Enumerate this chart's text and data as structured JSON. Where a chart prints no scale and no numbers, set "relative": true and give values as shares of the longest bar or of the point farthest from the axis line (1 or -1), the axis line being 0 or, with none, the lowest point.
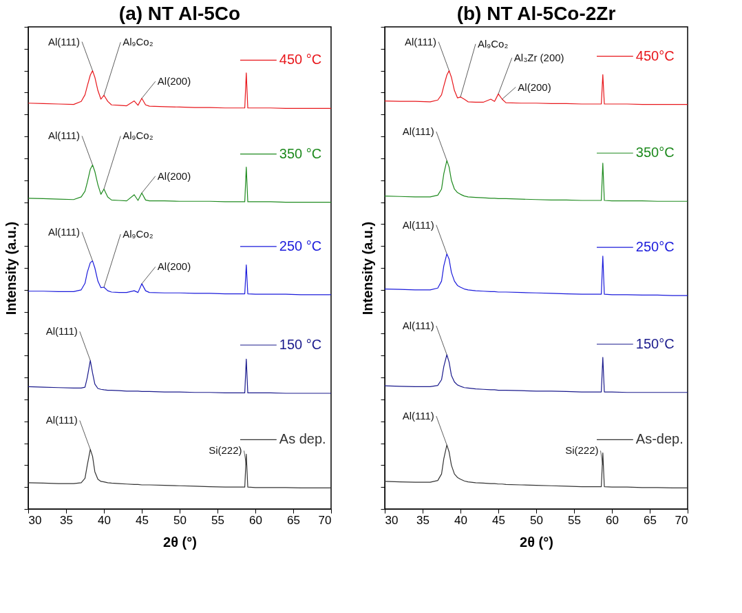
{
  "chart_data": [
    {
      "type": "line",
      "title": "(a) NT Al-5Co",
      "legend": "right",
      "xlabel": "2θ (°)",
      "ylabel": "Intensity (a.u.)",
      "relative": true,
      "xlim": [
        30,
        70
      ],
      "xticks": [
        30,
        35,
        40,
        45,
        50,
        55,
        60,
        65,
        70
      ],
      "tick_labels": "x",
      "grid": false,
      "x": [
        30,
        32,
        34,
        36,
        37,
        37.5,
        37.8,
        38.2,
        38.5,
        38.8,
        39.2,
        39.6,
        40,
        40.5,
        41,
        42,
        43,
        44,
        44.5,
        45,
        45.5,
        46,
        48,
        50,
        52,
        54,
        56,
        58,
        58.6,
        58.8,
        59,
        60,
        62,
        64,
        66,
        68,
        70
      ],
      "series": [
        {
          "name": "450 °C",
          "color": "#e8161b",
          "values": [
            0.926,
            0.925,
            0.924,
            0.923,
            0.93,
            0.945,
            0.965,
            0.99,
            1.0,
            0.985,
            0.955,
            0.935,
            0.944,
            0.93,
            0.922,
            0.921,
            0.92,
            0.931,
            0.921,
            0.937,
            0.922,
            0.919,
            0.918,
            0.917,
            0.916,
            0.916,
            0.915,
            0.915,
            0.915,
            0.995,
            0.915,
            0.915,
            0.915,
            0.914,
            0.914,
            0.914,
            0.914
          ]
        },
        {
          "name": "350 °C",
          "color": "#1e8a1e",
          "values": [
            0.709,
            0.708,
            0.707,
            0.706,
            0.712,
            0.725,
            0.745,
            0.775,
            0.785,
            0.77,
            0.74,
            0.718,
            0.73,
            0.712,
            0.705,
            0.704,
            0.703,
            0.717,
            0.704,
            0.721,
            0.705,
            0.703,
            0.703,
            0.702,
            0.702,
            0.702,
            0.701,
            0.701,
            0.701,
            0.78,
            0.701,
            0.701,
            0.701,
            0.7,
            0.7,
            0.7,
            0.7
          ]
        },
        {
          "name": "250 °C",
          "color": "#1a1adb",
          "values": [
            0.497,
            0.497,
            0.496,
            0.496,
            0.5,
            0.515,
            0.54,
            0.562,
            0.566,
            0.55,
            0.52,
            0.505,
            0.506,
            0.498,
            0.495,
            0.494,
            0.494,
            0.498,
            0.494,
            0.514,
            0.498,
            0.494,
            0.493,
            0.493,
            0.492,
            0.492,
            0.491,
            0.491,
            0.491,
            0.557,
            0.491,
            0.49,
            0.49,
            0.49,
            0.489,
            0.489,
            0.489
          ]
        },
        {
          "name": "150 °C",
          "color": "#1a1a8c",
          "values": [
            0.279,
            0.278,
            0.277,
            0.276,
            0.276,
            0.278,
            0.3,
            0.339,
            0.31,
            0.285,
            0.275,
            0.273,
            0.272,
            0.271,
            0.271,
            0.27,
            0.269,
            0.269,
            0.269,
            0.268,
            0.268,
            0.268,
            0.267,
            0.267,
            0.266,
            0.266,
            0.265,
            0.265,
            0.265,
            0.342,
            0.265,
            0.265,
            0.265,
            0.264,
            0.264,
            0.264,
            0.264
          ]
        },
        {
          "name": "As dep.",
          "color": "#333333",
          "values": [
            0.06,
            0.059,
            0.058,
            0.058,
            0.06,
            0.07,
            0.1,
            0.136,
            0.12,
            0.085,
            0.068,
            0.063,
            0.062,
            0.06,
            0.059,
            0.058,
            0.057,
            0.056,
            0.056,
            0.055,
            0.055,
            0.055,
            0.054,
            0.053,
            0.052,
            0.051,
            0.05,
            0.05,
            0.05,
            0.125,
            0.05,
            0.049,
            0.049,
            0.049,
            0.048,
            0.048,
            0.048
          ]
        }
      ],
      "annotations": [
        {
          "text": "Al(111)",
          "x": 38.5,
          "y": 1.0
        },
        {
          "text": "Al₉Co₂",
          "x": 40,
          "y": 0.944
        },
        {
          "text": "Al(200)",
          "x": 45,
          "y": 0.937
        },
        {
          "text": "Al(111)",
          "x": 38.5,
          "y": 0.785
        },
        {
          "text": "Al₉Co₂",
          "x": 40,
          "y": 0.73
        },
        {
          "text": "Al(200)",
          "x": 45,
          "y": 0.721
        },
        {
          "text": "Al(111)",
          "x": 38.5,
          "y": 0.566
        },
        {
          "text": "Al₉Co₂",
          "x": 40,
          "y": 0.506
        },
        {
          "text": "Al(200)",
          "x": 45,
          "y": 0.514
        },
        {
          "text": "Al(111)",
          "x": 38.2,
          "y": 0.339
        },
        {
          "text": "Al(111)",
          "x": 38.2,
          "y": 0.136
        },
        {
          "text": "Si(222)",
          "x": 58.8,
          "y": 0.1
        }
      ]
    },
    {
      "type": "line",
      "title": "(b) NT Al-5Co-2Zr",
      "legend": "right",
      "xlabel": "2θ (°)",
      "ylabel": "Intensity (a.u.)",
      "relative": true,
      "xlim": [
        30,
        70
      ],
      "xticks": [
        30,
        35,
        40,
        45,
        50,
        55,
        60,
        65,
        70
      ],
      "tick_labels": "x",
      "grid": false,
      "x": [
        30,
        32,
        34,
        36,
        37,
        37.5,
        37.8,
        38.2,
        38.5,
        38.8,
        39.2,
        39.6,
        40,
        40.5,
        41,
        42,
        43,
        44,
        44.5,
        45,
        45.5,
        46,
        48,
        50,
        52,
        54,
        56,
        58,
        58.6,
        58.8,
        59,
        60,
        62,
        64,
        66,
        68,
        70
      ],
      "series": [
        {
          "name": "450°C",
          "color": "#e8161b",
          "values": [
            0.931,
            0.93,
            0.93,
            0.929,
            0.933,
            0.945,
            0.965,
            0.99,
            1.0,
            0.985,
            0.955,
            0.938,
            0.94,
            0.935,
            0.929,
            0.928,
            0.928,
            0.935,
            0.93,
            0.947,
            0.935,
            0.927,
            0.926,
            0.926,
            0.925,
            0.925,
            0.924,
            0.924,
            0.924,
            0.991,
            0.924,
            0.924,
            0.924,
            0.923,
            0.923,
            0.923,
            0.923
          ]
        },
        {
          "name": "350°C",
          "color": "#1e8a1e",
          "values": [
            0.714,
            0.713,
            0.712,
            0.712,
            0.716,
            0.73,
            0.765,
            0.795,
            0.78,
            0.75,
            0.73,
            0.722,
            0.718,
            0.714,
            0.712,
            0.711,
            0.71,
            0.709,
            0.709,
            0.708,
            0.708,
            0.708,
            0.707,
            0.706,
            0.705,
            0.705,
            0.704,
            0.704,
            0.704,
            0.789,
            0.704,
            0.703,
            0.703,
            0.703,
            0.702,
            0.702,
            0.702
          ]
        },
        {
          "name": "250°C",
          "color": "#1a1adb",
          "values": [
            0.502,
            0.501,
            0.5,
            0.5,
            0.504,
            0.52,
            0.555,
            0.582,
            0.57,
            0.54,
            0.52,
            0.51,
            0.506,
            0.502,
            0.5,
            0.498,
            0.497,
            0.496,
            0.496,
            0.495,
            0.495,
            0.495,
            0.494,
            0.493,
            0.492,
            0.491,
            0.49,
            0.49,
            0.49,
            0.577,
            0.49,
            0.489,
            0.489,
            0.488,
            0.488,
            0.487,
            0.487
          ]
        },
        {
          "name": "150°C",
          "color": "#1a1a8c",
          "values": [
            0.281,
            0.28,
            0.279,
            0.279,
            0.282,
            0.295,
            0.325,
            0.352,
            0.335,
            0.305,
            0.29,
            0.283,
            0.28,
            0.277,
            0.276,
            0.274,
            0.273,
            0.272,
            0.272,
            0.271,
            0.271,
            0.271,
            0.27,
            0.269,
            0.269,
            0.268,
            0.267,
            0.267,
            0.267,
            0.346,
            0.267,
            0.267,
            0.266,
            0.266,
            0.266,
            0.266,
            0.266
          ]
        },
        {
          "name": "As-dep.",
          "color": "#333333",
          "values": [
            0.063,
            0.062,
            0.061,
            0.061,
            0.065,
            0.08,
            0.115,
            0.146,
            0.13,
            0.1,
            0.08,
            0.072,
            0.068,
            0.064,
            0.062,
            0.06,
            0.059,
            0.058,
            0.058,
            0.057,
            0.057,
            0.056,
            0.055,
            0.054,
            0.053,
            0.052,
            0.051,
            0.051,
            0.051,
            0.128,
            0.051,
            0.05,
            0.05,
            0.049,
            0.049,
            0.048,
            0.048
          ]
        }
      ],
      "annotations": [
        {
          "text": "Al(111)",
          "x": 38.5,
          "y": 1.0
        },
        {
          "text": "Al₉Co₂",
          "x": 40,
          "y": 0.94
        },
        {
          "text": "Al₃Zr (200)",
          "x": 45,
          "y": 0.947
        },
        {
          "text": "Al(200)",
          "x": 45.5,
          "y": 0.935
        },
        {
          "text": "Al(111)",
          "x": 38.2,
          "y": 0.795
        },
        {
          "text": "Al(111)",
          "x": 38.2,
          "y": 0.582
        },
        {
          "text": "Al(111)",
          "x": 38.2,
          "y": 0.352
        },
        {
          "text": "Al(111)",
          "x": 38.2,
          "y": 0.146
        },
        {
          "text": "Si(222)",
          "x": 58.8,
          "y": 0.1
        }
      ]
    }
  ]
}
